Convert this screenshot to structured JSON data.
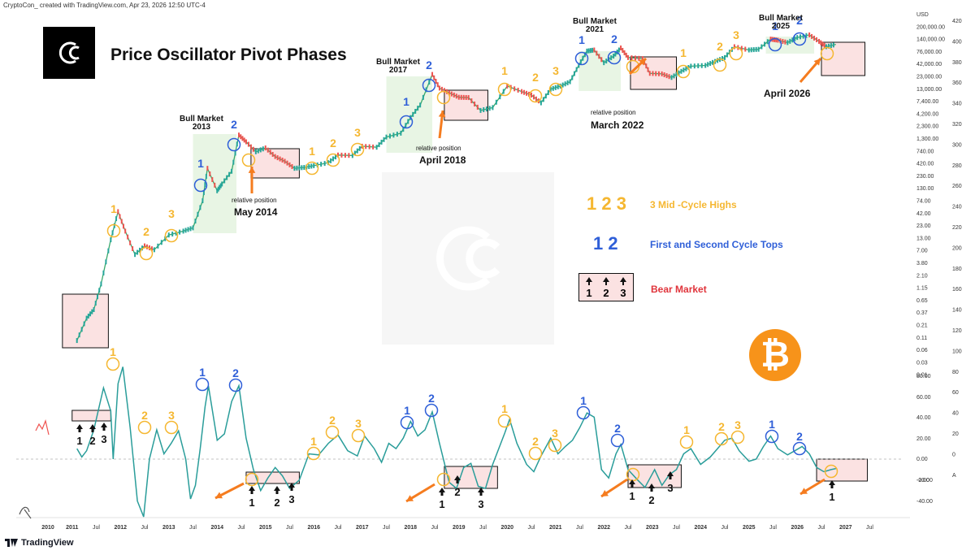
{
  "header": {
    "info": "CryptoCon_ created with TradingView.com, Apr 23, 2026 12:50 UTC-4"
  },
  "title": "Price Oscillator Pivot Phases",
  "brand": "TradingView",
  "price_axis_unit": "USD",
  "bull_markets": [
    {
      "line1": "Bull Market",
      "line2": "2013"
    },
    {
      "line1": "Bull Market",
      "line2": "2017"
    },
    {
      "line1": "Bull Market",
      "line2": "2021"
    },
    {
      "line1": "Bull Market",
      "line2": "2025"
    }
  ],
  "relative_positions": [
    {
      "small": "relative position",
      "big": "May 2014"
    },
    {
      "small": "relative position",
      "big": "April 2018"
    },
    {
      "small": "relative position",
      "big": "March 2022"
    },
    {
      "small": "",
      "big": "April 2026"
    }
  ],
  "legend": {
    "mid_cycle_nums": "1 2 3",
    "mid_cycle_text": "3 Mid -Cycle Highs",
    "cycle_top_nums": "1 2",
    "cycle_top_text": "First and Second Cycle Tops",
    "bear_text": "Bear Market"
  },
  "colors": {
    "mid_cycle": "#f5b731",
    "cycle_top": "#2f5fd8",
    "bear": "#e0343b",
    "oscillator": "#2a9d9a",
    "bull_zone": "#e8f5e4",
    "bear_zone": "#fbe2e2",
    "arrow": "#f57c1f"
  },
  "chart_data": {
    "type": "line",
    "x_axis_ticks": [
      "2010",
      "2011",
      "Jul",
      "2012",
      "Jul",
      "2013",
      "Jul",
      "2014",
      "Jul",
      "2015",
      "Jul",
      "2016",
      "Jul",
      "2017",
      "Jul",
      "2018",
      "Jul",
      "2019",
      "Jul",
      "2020",
      "Jul",
      "2021",
      "Jul",
      "2022",
      "Jul",
      "2023",
      "Jul",
      "2024",
      "Jul",
      "2025",
      "Jul",
      "2026",
      "Jul",
      "2027",
      "Jul"
    ],
    "price_scale": {
      "type": "log",
      "ticks": [
        "USD",
        "200,000.00",
        "140,000.00",
        "76,000.00",
        "42,000.00",
        "23,000.00",
        "13,000.00",
        "7,400.00",
        "4,200.00",
        "2,300.00",
        "1,300.00",
        "740.00",
        "420.00",
        "230.00",
        "130.00",
        "74.00",
        "42.00",
        "23.00",
        "13.00",
        "7.00",
        "3.80",
        "2.10",
        "1.15",
        "0.65",
        "0.37",
        "0.21",
        "0.11",
        "0.06",
        "0.03",
        "0.01"
      ]
    },
    "osc_scale": {
      "ticks": [
        "80.00",
        "60.00",
        "40.00",
        "20.00",
        "0.00",
        "-0.00",
        "-20.00",
        "-40.00"
      ],
      "ylim": [
        -40,
        80
      ]
    },
    "secondary_scale": {
      "ticks": [
        "420",
        "400",
        "380",
        "360",
        "340",
        "320",
        "300",
        "280",
        "260",
        "240",
        "220",
        "200",
        "180",
        "160",
        "140",
        "120",
        "100",
        "80",
        "60",
        "40",
        "20",
        "0",
        "A"
      ]
    },
    "price_series": {
      "name": "BTC",
      "points": [
        [
          2010.6,
          0.07
        ],
        [
          2010.8,
          0.2
        ],
        [
          2010.95,
          0.3
        ],
        [
          2011.1,
          1
        ],
        [
          2011.3,
          8
        ],
        [
          2011.45,
          30
        ],
        [
          2011.6,
          12
        ],
        [
          2011.8,
          4
        ],
        [
          2012.0,
          6
        ],
        [
          2012.2,
          5
        ],
        [
          2012.5,
          10
        ],
        [
          2012.8,
          12
        ],
        [
          2013.0,
          14
        ],
        [
          2013.2,
          50
        ],
        [
          2013.3,
          230
        ],
        [
          2013.5,
          80
        ],
        [
          2013.6,
          110
        ],
        [
          2013.8,
          200
        ],
        [
          2013.95,
          1100
        ],
        [
          2014.1,
          800
        ],
        [
          2014.3,
          500
        ],
        [
          2014.5,
          600
        ],
        [
          2014.7,
          400
        ],
        [
          2014.9,
          320
        ],
        [
          2015.1,
          230
        ],
        [
          2015.3,
          240
        ],
        [
          2015.5,
          260
        ],
        [
          2015.8,
          300
        ],
        [
          2016.0,
          430
        ],
        [
          2016.3,
          420
        ],
        [
          2016.5,
          650
        ],
        [
          2016.8,
          620
        ],
        [
          2017.0,
          1000
        ],
        [
          2017.3,
          1200
        ],
        [
          2017.5,
          2500
        ],
        [
          2017.7,
          4500
        ],
        [
          2017.95,
          19000
        ],
        [
          2018.1,
          10000
        ],
        [
          2018.3,
          8000
        ],
        [
          2018.5,
          6500
        ],
        [
          2018.7,
          6400
        ],
        [
          2018.95,
          3500
        ],
        [
          2019.2,
          4000
        ],
        [
          2019.5,
          11000
        ],
        [
          2019.8,
          8500
        ],
        [
          2020.0,
          7200
        ],
        [
          2020.2,
          5000
        ],
        [
          2020.4,
          9500
        ],
        [
          2020.6,
          11000
        ],
        [
          2020.8,
          13500
        ],
        [
          2020.98,
          29000
        ],
        [
          2021.15,
          57000
        ],
        [
          2021.3,
          60000
        ],
        [
          2021.5,
          33000
        ],
        [
          2021.7,
          45000
        ],
        [
          2021.85,
          66000
        ],
        [
          2022.0,
          42000
        ],
        [
          2022.3,
          40000
        ],
        [
          2022.45,
          20000
        ],
        [
          2022.7,
          19500
        ],
        [
          2022.9,
          16500
        ],
        [
          2023.1,
          22000
        ],
        [
          2023.3,
          28000
        ],
        [
          2023.6,
          29000
        ],
        [
          2023.8,
          35000
        ],
        [
          2024.0,
          42000
        ],
        [
          2024.2,
          70000
        ],
        [
          2024.5,
          60000
        ],
        [
          2024.7,
          62000
        ],
        [
          2024.95,
          100000
        ],
        [
          2025.1,
          95000
        ],
        [
          2025.3,
          85000
        ],
        [
          2025.5,
          108000
        ],
        [
          2025.75,
          122000
        ],
        [
          2025.95,
          90000
        ],
        [
          2026.1,
          70000
        ],
        [
          2026.3,
          78000
        ]
      ]
    },
    "oscillator_series": {
      "name": "Price Oscillator",
      "points": [
        [
          2010.6,
          10
        ],
        [
          2010.7,
          2
        ],
        [
          2010.8,
          8
        ],
        [
          2010.95,
          28
        ],
        [
          2011.15,
          68
        ],
        [
          2011.3,
          46
        ],
        [
          2011.35,
          0
        ],
        [
          2011.45,
          72
        ],
        [
          2011.55,
          88
        ],
        [
          2011.7,
          30
        ],
        [
          2011.85,
          -40
        ],
        [
          2011.98,
          -55
        ],
        [
          2012.1,
          0
        ],
        [
          2012.25,
          28
        ],
        [
          2012.4,
          5
        ],
        [
          2012.55,
          15
        ],
        [
          2012.7,
          27
        ],
        [
          2012.85,
          0
        ],
        [
          2012.95,
          -38
        ],
        [
          2013.05,
          -25
        ],
        [
          2013.15,
          10
        ],
        [
          2013.25,
          50
        ],
        [
          2013.32,
          70
        ],
        [
          2013.5,
          18
        ],
        [
          2013.65,
          24
        ],
        [
          2013.8,
          55
        ],
        [
          2013.95,
          70
        ],
        [
          2014.1,
          20
        ],
        [
          2014.25,
          -10
        ],
        [
          2014.4,
          -30
        ],
        [
          2014.55,
          -18
        ],
        [
          2014.7,
          -8
        ],
        [
          2014.85,
          -16
        ],
        [
          2015.0,
          -28
        ],
        [
          2015.2,
          -20
        ],
        [
          2015.4,
          5
        ],
        [
          2015.6,
          4
        ],
        [
          2015.8,
          15
        ],
        [
          2016.0,
          23
        ],
        [
          2016.2,
          8
        ],
        [
          2016.4,
          3
        ],
        [
          2016.55,
          22
        ],
        [
          2016.75,
          10
        ],
        [
          2016.9,
          -3
        ],
        [
          2017.05,
          15
        ],
        [
          2017.2,
          10
        ],
        [
          2017.35,
          20
        ],
        [
          2017.5,
          36
        ],
        [
          2017.65,
          22
        ],
        [
          2017.8,
          28
        ],
        [
          2017.95,
          45
        ],
        [
          2018.1,
          15
        ],
        [
          2018.3,
          -22
        ],
        [
          2018.45,
          -28
        ],
        [
          2018.6,
          -8
        ],
        [
          2018.75,
          -4
        ],
        [
          2018.9,
          -26
        ],
        [
          2019.05,
          -28
        ],
        [
          2019.2,
          -5
        ],
        [
          2019.45,
          25
        ],
        [
          2019.55,
          38
        ],
        [
          2019.7,
          15
        ],
        [
          2019.9,
          -5
        ],
        [
          2020.05,
          -12
        ],
        [
          2020.2,
          3
        ],
        [
          2020.4,
          20
        ],
        [
          2020.55,
          5
        ],
        [
          2020.7,
          12
        ],
        [
          2020.85,
          18
        ],
        [
          2021.0,
          30
        ],
        [
          2021.15,
          44
        ],
        [
          2021.3,
          40
        ],
        [
          2021.45,
          -10
        ],
        [
          2021.6,
          -18
        ],
        [
          2021.75,
          5
        ],
        [
          2021.85,
          14
        ],
        [
          2022.0,
          -10
        ],
        [
          2022.2,
          -20
        ],
        [
          2022.35,
          -27
        ],
        [
          2022.55,
          -10
        ],
        [
          2022.7,
          -25
        ],
        [
          2022.85,
          -15
        ],
        [
          2023.0,
          -10
        ],
        [
          2023.15,
          5
        ],
        [
          2023.3,
          10
        ],
        [
          2023.5,
          -5
        ],
        [
          2023.7,
          2
        ],
        [
          2023.85,
          10
        ],
        [
          2024.0,
          18
        ],
        [
          2024.15,
          20
        ],
        [
          2024.3,
          8
        ],
        [
          2024.5,
          -2
        ],
        [
          2024.65,
          0
        ],
        [
          2024.8,
          12
        ],
        [
          2024.95,
          22
        ],
        [
          2025.1,
          10
        ],
        [
          2025.3,
          4
        ],
        [
          2025.45,
          8
        ],
        [
          2025.6,
          12
        ],
        [
          2025.75,
          5
        ],
        [
          2025.9,
          -8
        ],
        [
          2026.05,
          -12
        ],
        [
          2026.2,
          -10
        ],
        [
          2026.3,
          -9
        ]
      ]
    }
  }
}
